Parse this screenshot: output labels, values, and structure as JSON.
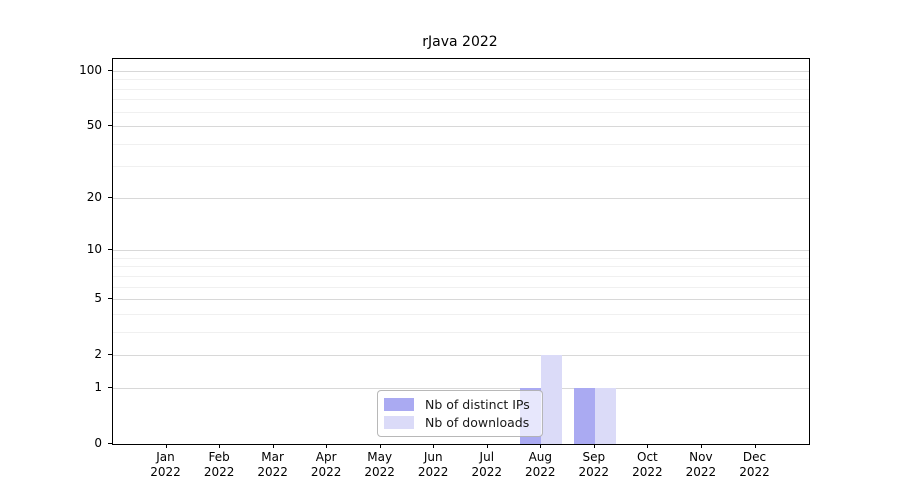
{
  "chart_data": {
    "type": "bar",
    "title": "rJava 2022",
    "categories": [
      "Jan",
      "Feb",
      "Mar",
      "Apr",
      "May",
      "Jun",
      "Jul",
      "Aug",
      "Sep",
      "Oct",
      "Nov",
      "Dec"
    ],
    "category_year": "2022",
    "series": [
      {
        "name": "Nb of distinct IPs",
        "color": "#aaaaf2",
        "values": [
          0,
          0,
          0,
          0,
          0,
          0,
          0,
          1,
          1,
          0,
          0,
          0
        ]
      },
      {
        "name": "Nb of downloads",
        "color": "#dbdbf8",
        "values": [
          0,
          0,
          0,
          0,
          0,
          0,
          0,
          2,
          1,
          0,
          0,
          0
        ]
      }
    ],
    "yscale": "log1p",
    "yticks": [
      0,
      1,
      2,
      5,
      10,
      20,
      50,
      100
    ],
    "minor_gridlines": [
      3,
      4,
      6,
      7,
      8,
      9,
      30,
      40,
      60,
      70,
      80,
      90
    ],
    "ylim": [
      0,
      116
    ],
    "grid": "on",
    "legend_position": "inside-bottom-center",
    "colors": {
      "grid_major": "#d8d8d8",
      "grid_minor": "#f0f0f0",
      "axis": "#000000",
      "text": "#1a1a1a",
      "legend_border": "#c8c8c8"
    }
  }
}
